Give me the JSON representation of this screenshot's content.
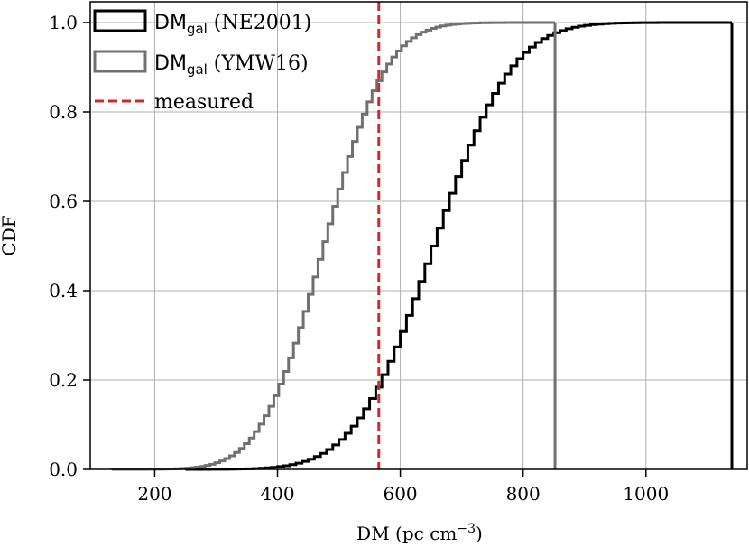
{
  "chart_data": {
    "type": "line",
    "subtype": "cumulative step histogram",
    "xlabel_main": "DM (pc cm",
    "xlabel_exp": "−3",
    "xlabel_close": ")",
    "ylabel": "CDF",
    "xlim": [
      95,
      1165
    ],
    "ylim": [
      0,
      1.0
    ],
    "xticks": [
      200,
      400,
      600,
      800,
      1000
    ],
    "xtick_labels": [
      "200",
      "400",
      "600",
      "800",
      "1000"
    ],
    "yticks": [
      0.0,
      0.2,
      0.4,
      0.6,
      0.8,
      1.0
    ],
    "ytick_labels": [
      "0.0",
      "0.2",
      "0.4",
      "0.6",
      "0.8",
      "1.0"
    ],
    "grid": true,
    "legend_position": "top-left",
    "series": [
      {
        "name_base": "DM",
        "name_sub": "gal",
        "name_suffix": " (NE2001)",
        "color": "#000000",
        "style": "step",
        "range": [
          250,
          1140
        ],
        "bin_width": 10,
        "dist_mean": 660,
        "dist_std": 100
      },
      {
        "name_base": "DM",
        "name_sub": "gal",
        "name_suffix": " (YMW16)",
        "color": "#707070",
        "style": "step",
        "range": [
          130,
          852
        ],
        "bin_width": 8,
        "dist_mean": 480,
        "dist_std": 80
      }
    ],
    "vlines": [
      {
        "name": "measured",
        "x": 565,
        "color": "#d62728",
        "style": "dashed"
      }
    ]
  }
}
